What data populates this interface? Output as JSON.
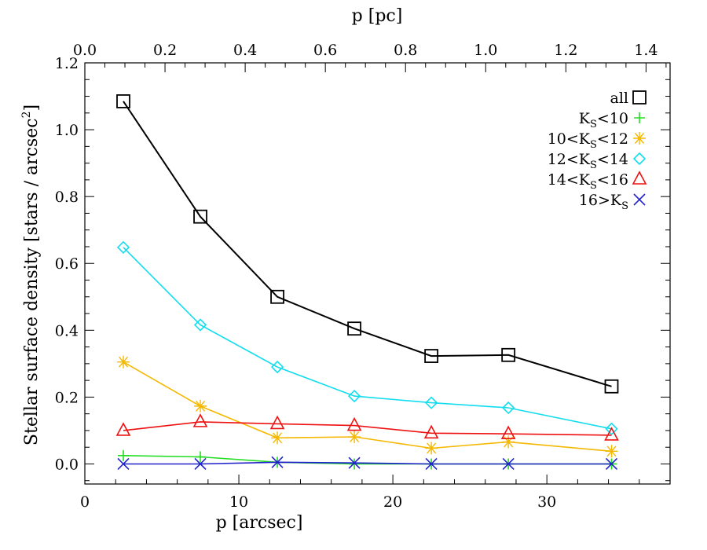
{
  "chart_data": {
    "type": "line",
    "title": "",
    "xlabel": "p [arcsec]",
    "ylabel": "Stellar surface density  [stars / arcsec²]",
    "x2label": "p [pc]",
    "xlim": [
      0,
      38
    ],
    "ylim": [
      -0.06,
      1.2
    ],
    "x2lim": [
      0,
      1.46
    ],
    "xticks": [
      0,
      10,
      20,
      30
    ],
    "yticks": [
      0.0,
      0.2,
      0.4,
      0.6,
      0.8,
      1.0,
      1.2
    ],
    "x2ticks": [
      0.0,
      0.2,
      0.4,
      0.6,
      0.8,
      1.0,
      1.2,
      1.4
    ],
    "xtick_labels": [
      "0",
      "10",
      "20",
      "30"
    ],
    "ytick_labels": [
      "0.0",
      "0.2",
      "0.4",
      "0.6",
      "0.8",
      "1.0",
      "1.2"
    ],
    "x2tick_labels": [
      "0.0",
      "0.2",
      "0.4",
      "0.6",
      "0.8",
      "1.0",
      "1.2",
      "1.4"
    ],
    "grid": false,
    "legend_position": "top-right",
    "x": [
      2.5,
      7.5,
      12.5,
      17.5,
      22.5,
      27.5,
      34.2
    ],
    "series": [
      {
        "name": "all",
        "marker": "square",
        "color": "#000000",
        "values": [
          1.085,
          0.74,
          0.5,
          0.405,
          0.323,
          0.326,
          0.232
        ]
      },
      {
        "name": "K_S<10",
        "marker": "plus",
        "color": "#22dd22",
        "values": [
          0.025,
          0.021,
          0.005,
          0.0,
          0.0,
          0.0,
          0.0
        ]
      },
      {
        "name": "10<K_S<12",
        "marker": "asterisk",
        "color": "#f5b800",
        "values": [
          0.305,
          0.173,
          0.078,
          0.081,
          0.047,
          0.066,
          0.038
        ]
      },
      {
        "name": "12<K_S<14",
        "marker": "diamond",
        "color": "#11ddee",
        "values": [
          0.648,
          0.416,
          0.29,
          0.203,
          0.183,
          0.168,
          0.105
        ]
      },
      {
        "name": "14<K_S<16",
        "marker": "triangle",
        "color": "#ee1111",
        "values": [
          0.1,
          0.126,
          0.12,
          0.115,
          0.092,
          0.09,
          0.086
        ]
      },
      {
        "name": "16>K_S",
        "marker": "cross",
        "color": "#2222cc",
        "values": [
          0.0,
          0.0,
          0.005,
          0.003,
          0.0,
          0.0,
          0.0
        ]
      }
    ]
  }
}
